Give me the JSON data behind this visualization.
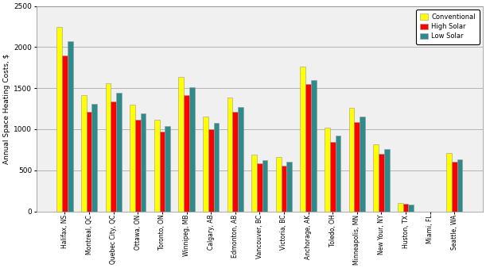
{
  "categories": [
    "Halifax, NS",
    "Montreal, QC",
    "Quebec City, QC",
    "Ottawa, ON",
    "Toronto, ON",
    "Winnipeg, MB",
    "Calgary, AB",
    "Edmonton, AB",
    "Vancouver, BC",
    "Victoria, BC",
    "Anchorage, AK",
    "Toledo, OH",
    "Minneapolis, MN",
    "New Your, NY",
    "Huston, TX",
    "Miami, FL",
    "Seattle, WA"
  ],
  "conventional": [
    2250,
    1420,
    1560,
    1300,
    1120,
    1640,
    1150,
    1390,
    690,
    665,
    1760,
    1020,
    1260,
    820,
    100,
    0,
    710
  ],
  "high_solar": [
    1900,
    1210,
    1340,
    1120,
    970,
    1420,
    1000,
    1210,
    580,
    560,
    1550,
    850,
    1090,
    700,
    90,
    0,
    600
  ],
  "low_solar": [
    2075,
    1305,
    1445,
    1190,
    1040,
    1510,
    1080,
    1270,
    625,
    600,
    1600,
    920,
    1150,
    755,
    85,
    0,
    635
  ],
  "conv_color": "#FFFF00",
  "high_color": "#FF0000",
  "low_color": "#2E8B8B",
  "ylabel": "Annual Space Heating Costs, $",
  "ylim": [
    0,
    2500
  ],
  "yticks": [
    0,
    500,
    1000,
    1500,
    2000,
    2500
  ],
  "legend_labels": [
    "Conventional",
    "High Solar",
    "Low Solar"
  ],
  "bar_width": 0.22,
  "edge_color": "#999999",
  "bg_color": "#F0F0F0",
  "grid_color": "#AAAAAA"
}
